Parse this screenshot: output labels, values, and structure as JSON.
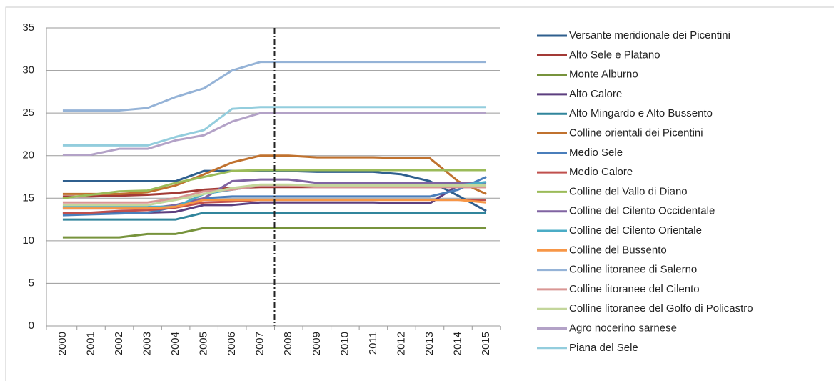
{
  "chart_data": {
    "type": "line",
    "x": [
      2000,
      2001,
      2002,
      2003,
      2004,
      2005,
      2006,
      2007,
      2008,
      2009,
      2010,
      2011,
      2012,
      2013,
      2014,
      2015
    ],
    "xlim": [
      1999.42,
      2015.48
    ],
    "xticks": [
      2000,
      2001,
      2002,
      2003,
      2004,
      2005,
      2006,
      2007,
      2008,
      2009,
      2010,
      2011,
      2012,
      2013,
      2014,
      2015
    ],
    "ylim": [
      0,
      35
    ],
    "yticks": [
      0,
      5,
      10,
      15,
      20,
      25,
      30,
      35
    ],
    "grid": true,
    "vline": 2007.5,
    "series": [
      {
        "name": "Versante meridionale dei Picentini",
        "color": "#2f5f8e",
        "values": [
          17,
          17,
          17,
          17,
          17,
          18.2,
          18.2,
          18.2,
          18.2,
          18.1,
          18.1,
          18.1,
          17.8,
          17,
          15.3,
          13.5
        ]
      },
      {
        "name": "Alto Sele e Platano",
        "color": "#a33a36",
        "values": [
          15.2,
          15.2,
          15.3,
          15.4,
          15.6,
          16,
          16.2,
          16.3,
          16.3,
          16.3,
          16.3,
          16.3,
          16.3,
          16.3,
          16.3,
          16.3
        ]
      },
      {
        "name": "Monte Alburno",
        "color": "#77933c",
        "values": [
          10.4,
          10.4,
          10.4,
          10.8,
          10.8,
          11.5,
          11.5,
          11.5,
          11.5,
          11.5,
          11.5,
          11.5,
          11.5,
          11.5,
          11.5,
          11.5
        ]
      },
      {
        "name": "Alto Calore",
        "color": "#5c3f7f",
        "values": [
          13.3,
          13.3,
          13.3,
          13.3,
          13.4,
          14.2,
          14.2,
          14.5,
          14.5,
          14.5,
          14.5,
          14.5,
          14.4,
          14.4,
          16.5,
          16.5
        ]
      },
      {
        "name": "Alto Mingardo e Alto Bussento",
        "color": "#31859c",
        "values": [
          12.5,
          12.5,
          12.5,
          12.5,
          12.5,
          13.3,
          13.3,
          13.3,
          13.3,
          13.3,
          13.3,
          13.3,
          13.3,
          13.3,
          13.3,
          13.3
        ]
      },
      {
        "name": "Colline orientali dei Picentini",
        "color": "#c0722f",
        "values": [
          15.5,
          15.5,
          15.5,
          15.7,
          16.5,
          17.8,
          19.2,
          20,
          20,
          19.8,
          19.8,
          19.8,
          19.7,
          19.7,
          17,
          15.5
        ]
      },
      {
        "name": "Medio Sele",
        "color": "#4a7ebb",
        "values": [
          13,
          13.1,
          13.2,
          13.3,
          14,
          15,
          15.2,
          15.2,
          15.2,
          15.2,
          15.2,
          15.2,
          15.2,
          15.2,
          16,
          17.5
        ]
      },
      {
        "name": "Medio Calore",
        "color": "#c0504d",
        "values": [
          13.3,
          13.3,
          13.5,
          13.6,
          13.9,
          14.5,
          14.6,
          14.8,
          14.8,
          14.8,
          14.8,
          14.8,
          14.8,
          14.8,
          14.8,
          14.8
        ]
      },
      {
        "name": "Colline del Vallo di Diano",
        "color": "#9bbb59",
        "values": [
          15,
          15.4,
          15.8,
          15.9,
          16.8,
          17.5,
          18.2,
          18.3,
          18.3,
          18.3,
          18.3,
          18.3,
          18.3,
          18.3,
          18.3,
          18.3
        ]
      },
      {
        "name": "Colline del Cilento Occidentale",
        "color": "#8064a2",
        "values": [
          13.8,
          13.8,
          13.8,
          13.8,
          14.2,
          15,
          17,
          17.2,
          17.2,
          16.8,
          16.8,
          16.8,
          16.8,
          16.8,
          16.8,
          16.8
        ]
      },
      {
        "name": "Colline del Cilento Orientale",
        "color": "#4bacc6",
        "values": [
          14,
          14,
          14,
          14,
          14,
          15.5,
          16,
          16.5,
          16.5,
          16.5,
          16.5,
          16.5,
          16.5,
          16.5,
          16.5,
          16.9
        ]
      },
      {
        "name": "Colline del Bussento",
        "color": "#f79646",
        "values": [
          13.8,
          13.8,
          13.8,
          13.8,
          14,
          14.8,
          14.8,
          14.8,
          14.8,
          14.8,
          14.8,
          14.8,
          14.8,
          14.8,
          14.8,
          14.5
        ]
      },
      {
        "name": "Colline litoranee di Salerno",
        "color": "#95b3d7",
        "values": [
          25.3,
          25.3,
          25.3,
          25.6,
          26.9,
          27.9,
          30,
          31,
          31,
          31,
          31,
          31,
          31,
          31,
          31,
          31
        ]
      },
      {
        "name": "Colline litoranee del Cilento",
        "color": "#d99694",
        "values": [
          14.5,
          14.5,
          14.5,
          14.5,
          15,
          15.8,
          16,
          16.5,
          16.5,
          16.3,
          16.3,
          16.3,
          16.3,
          16.3,
          16.3,
          16.3
        ]
      },
      {
        "name": "Colline litoranee del Golfo di Policastro",
        "color": "#c3d69b",
        "values": [
          14.2,
          14.2,
          14.2,
          14.2,
          14.8,
          15.5,
          16.2,
          16.6,
          16.6,
          16.5,
          16.5,
          16.5,
          16.5,
          16.5,
          16.5,
          16.5
        ]
      },
      {
        "name": "Agro nocerino sarnese",
        "color": "#b3a2c7",
        "values": [
          20.1,
          20.1,
          20.8,
          20.8,
          21.8,
          22.4,
          24,
          25,
          25,
          25,
          25,
          25,
          25,
          25,
          25,
          25
        ]
      },
      {
        "name": "Piana del Sele",
        "color": "#93cddd",
        "values": [
          21.2,
          21.2,
          21.2,
          21.2,
          22.2,
          23,
          25.5,
          25.7,
          25.7,
          25.7,
          25.7,
          25.7,
          25.7,
          25.7,
          25.7,
          25.7
        ]
      }
    ]
  }
}
